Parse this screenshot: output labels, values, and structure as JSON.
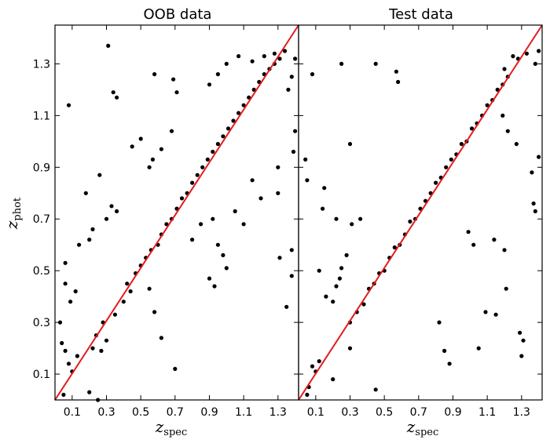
{
  "chart_data": [
    {
      "type": "scatter",
      "title": "OOB data",
      "xlabel": {
        "main": "z",
        "sub": "spec"
      },
      "ylabel": {
        "main": "z",
        "sub": "phot"
      },
      "xlim": [
        0.0,
        1.42
      ],
      "ylim": [
        0.0,
        1.45
      ],
      "xticks": [
        0.1,
        0.3,
        0.5,
        0.7,
        0.9,
        1.1,
        1.3
      ],
      "yticks": [
        0.1,
        0.3,
        0.5,
        0.7,
        0.9,
        1.1,
        1.3
      ],
      "grid": false,
      "legend": "none",
      "series": [
        {
          "marker_color": "#000000",
          "points": [
            [
              0.31,
              1.37
            ],
            [
              0.08,
              1.14
            ],
            [
              0.34,
              1.19
            ],
            [
              0.36,
              1.17
            ],
            [
              0.58,
              1.26
            ],
            [
              0.69,
              1.24
            ],
            [
              0.71,
              1.19
            ],
            [
              0.18,
              0.8
            ],
            [
              0.26,
              0.87
            ],
            [
              0.45,
              0.98
            ],
            [
              0.5,
              1.01
            ],
            [
              0.55,
              0.9
            ],
            [
              0.57,
              0.93
            ],
            [
              0.62,
              0.97
            ],
            [
              0.68,
              1.04
            ],
            [
              0.9,
              1.22
            ],
            [
              0.95,
              1.26
            ],
            [
              1.0,
              1.3
            ],
            [
              1.07,
              1.33
            ],
            [
              1.15,
              1.31
            ],
            [
              1.22,
              1.33
            ],
            [
              1.28,
              1.34
            ],
            [
              1.34,
              1.35
            ],
            [
              1.4,
              1.32
            ],
            [
              1.38,
              1.25
            ],
            [
              1.4,
              1.04
            ],
            [
              1.39,
              0.96
            ],
            [
              1.36,
              1.2
            ],
            [
              1.3,
              0.9
            ],
            [
              1.3,
              0.8
            ],
            [
              1.31,
              0.55
            ],
            [
              1.35,
              0.36
            ],
            [
              1.38,
              0.58
            ],
            [
              1.38,
              0.48
            ],
            [
              1.2,
              0.78
            ],
            [
              1.15,
              0.85
            ],
            [
              1.1,
              0.68
            ],
            [
              1.05,
              0.73
            ],
            [
              1.0,
              0.51
            ],
            [
              0.98,
              0.56
            ],
            [
              0.95,
              0.6
            ],
            [
              0.93,
              0.44
            ],
            [
              0.9,
              0.47
            ],
            [
              0.92,
              0.7
            ],
            [
              0.85,
              0.68
            ],
            [
              0.8,
              0.62
            ],
            [
              0.7,
              0.12
            ],
            [
              0.62,
              0.24
            ],
            [
              0.58,
              0.34
            ],
            [
              0.55,
              0.43
            ],
            [
              0.06,
              0.53
            ],
            [
              0.06,
              0.45
            ],
            [
              0.09,
              0.38
            ],
            [
              0.12,
              0.42
            ],
            [
              0.14,
              0.6
            ],
            [
              0.2,
              0.62
            ],
            [
              0.22,
              0.66
            ],
            [
              0.3,
              0.7
            ],
            [
              0.33,
              0.75
            ],
            [
              0.36,
              0.73
            ],
            [
              0.04,
              0.22
            ],
            [
              0.03,
              0.3
            ],
            [
              0.06,
              0.19
            ],
            [
              0.08,
              0.14
            ],
            [
              0.1,
              0.11
            ],
            [
              0.13,
              0.17
            ],
            [
              0.2,
              0.03
            ],
            [
              0.25,
              0.0
            ],
            [
              0.05,
              0.02
            ],
            [
              0.27,
              0.19
            ],
            [
              0.3,
              0.23
            ],
            [
              0.22,
              0.2
            ],
            [
              0.24,
              0.25
            ],
            [
              0.28,
              0.3
            ],
            [
              0.35,
              0.33
            ],
            [
              0.4,
              0.38
            ],
            [
              0.42,
              0.45
            ],
            [
              0.44,
              0.42
            ],
            [
              0.47,
              0.49
            ],
            [
              0.5,
              0.52
            ],
            [
              0.53,
              0.55
            ],
            [
              0.56,
              0.58
            ],
            [
              0.6,
              0.6
            ],
            [
              0.62,
              0.64
            ],
            [
              0.65,
              0.68
            ],
            [
              0.68,
              0.7
            ],
            [
              0.71,
              0.74
            ],
            [
              0.74,
              0.78
            ],
            [
              0.77,
              0.8
            ],
            [
              0.8,
              0.84
            ],
            [
              0.83,
              0.87
            ],
            [
              0.86,
              0.9
            ],
            [
              0.89,
              0.93
            ],
            [
              0.92,
              0.96
            ],
            [
              0.95,
              0.99
            ],
            [
              0.98,
              1.02
            ],
            [
              1.01,
              1.05
            ],
            [
              1.04,
              1.08
            ],
            [
              1.07,
              1.11
            ],
            [
              1.1,
              1.14
            ],
            [
              1.13,
              1.17
            ],
            [
              1.16,
              1.2
            ],
            [
              1.19,
              1.23
            ],
            [
              1.22,
              1.26
            ],
            [
              1.25,
              1.28
            ],
            [
              1.28,
              1.3
            ],
            [
              1.31,
              1.32
            ]
          ]
        }
      ],
      "reference_line": {
        "color": "#e41a1c",
        "from": [
          0.0,
          0.0
        ],
        "to": [
          1.42,
          1.45
        ]
      }
    },
    {
      "type": "scatter",
      "title": "Test data",
      "xlabel": {
        "main": "z",
        "sub": "spec"
      },
      "ylabel": {
        "main": "",
        "sub": ""
      },
      "xlim": [
        0.0,
        1.42
      ],
      "ylim": [
        0.0,
        1.45
      ],
      "xticks": [
        0.1,
        0.3,
        0.5,
        0.7,
        0.9,
        1.1,
        1.3
      ],
      "yticks": [
        0.1,
        0.3,
        0.5,
        0.7,
        0.9,
        1.1,
        1.3
      ],
      "grid": false,
      "legend": "none",
      "series": [
        {
          "marker_color": "#000000",
          "points": [
            [
              0.08,
              1.26
            ],
            [
              0.25,
              1.3
            ],
            [
              0.45,
              1.3
            ],
            [
              0.57,
              1.27
            ],
            [
              0.58,
              1.23
            ],
            [
              0.3,
              0.99
            ],
            [
              0.04,
              0.93
            ],
            [
              0.05,
              0.85
            ],
            [
              0.15,
              0.82
            ],
            [
              0.14,
              0.74
            ],
            [
              0.22,
              0.7
            ],
            [
              0.31,
              0.68
            ],
            [
              0.36,
              0.7
            ],
            [
              0.16,
              0.4
            ],
            [
              0.2,
              0.38
            ],
            [
              0.12,
              0.5
            ],
            [
              0.25,
              0.51
            ],
            [
              0.28,
              0.56
            ],
            [
              0.22,
              0.44
            ],
            [
              0.24,
              0.47
            ],
            [
              0.12,
              0.15
            ],
            [
              0.1,
              0.11
            ],
            [
              0.08,
              0.13
            ],
            [
              0.06,
              0.05
            ],
            [
              0.05,
              0.02
            ],
            [
              0.2,
              0.08
            ],
            [
              0.3,
              0.2
            ],
            [
              0.45,
              0.04
            ],
            [
              0.82,
              0.3
            ],
            [
              0.85,
              0.19
            ],
            [
              0.88,
              0.14
            ],
            [
              1.02,
              0.6
            ],
            [
              0.99,
              0.65
            ],
            [
              1.05,
              0.2
            ],
            [
              1.09,
              0.34
            ],
            [
              1.15,
              0.33
            ],
            [
              1.21,
              0.43
            ],
            [
              1.29,
              0.26
            ],
            [
              1.31,
              0.23
            ],
            [
              1.3,
              0.17
            ],
            [
              1.37,
              0.76
            ],
            [
              1.38,
              0.73
            ],
            [
              1.4,
              0.94
            ],
            [
              1.36,
              0.88
            ],
            [
              1.27,
              0.99
            ],
            [
              1.22,
              1.04
            ],
            [
              1.19,
              1.1
            ],
            [
              1.14,
              0.62
            ],
            [
              1.2,
              0.58
            ],
            [
              1.4,
              1.35
            ],
            [
              1.38,
              1.3
            ],
            [
              1.33,
              1.34
            ],
            [
              1.28,
              1.32
            ],
            [
              1.25,
              1.33
            ],
            [
              1.2,
              1.28
            ],
            [
              0.3,
              0.3
            ],
            [
              0.34,
              0.34
            ],
            [
              0.38,
              0.37
            ],
            [
              0.41,
              0.43
            ],
            [
              0.44,
              0.45
            ],
            [
              0.47,
              0.49
            ],
            [
              0.5,
              0.5
            ],
            [
              0.53,
              0.55
            ],
            [
              0.56,
              0.59
            ],
            [
              0.59,
              0.6
            ],
            [
              0.62,
              0.64
            ],
            [
              0.65,
              0.69
            ],
            [
              0.68,
              0.7
            ],
            [
              0.71,
              0.74
            ],
            [
              0.74,
              0.77
            ],
            [
              0.77,
              0.8
            ],
            [
              0.8,
              0.84
            ],
            [
              0.83,
              0.86
            ],
            [
              0.86,
              0.9
            ],
            [
              0.89,
              0.93
            ],
            [
              0.92,
              0.95
            ],
            [
              0.95,
              0.99
            ],
            [
              0.98,
              1.0
            ],
            [
              1.01,
              1.05
            ],
            [
              1.04,
              1.07
            ],
            [
              1.07,
              1.1
            ],
            [
              1.1,
              1.14
            ],
            [
              1.13,
              1.16
            ],
            [
              1.16,
              1.2
            ],
            [
              1.19,
              1.22
            ],
            [
              1.22,
              1.25
            ]
          ]
        }
      ],
      "reference_line": {
        "color": "#e41a1c",
        "from": [
          0.0,
          0.0
        ],
        "to": [
          1.42,
          1.45
        ]
      }
    }
  ]
}
